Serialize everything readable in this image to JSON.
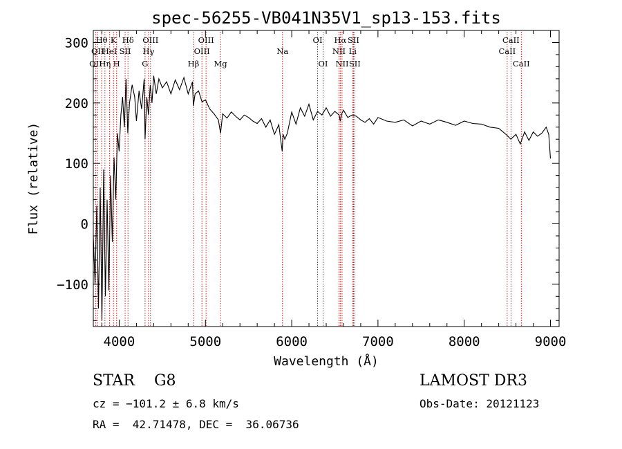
{
  "chart_data": {
    "type": "line",
    "title": "spec-56255-VB041N35V1_sp13-153.fits",
    "xlabel": "Wavelength (Å)",
    "ylabel": "Flux (relative)",
    "xlim": [
      3700,
      9100
    ],
    "ylim": [
      -170,
      320
    ],
    "x_ticks": [
      4000,
      5000,
      6000,
      7000,
      8000,
      9000
    ],
    "y_ticks": [
      -100,
      0,
      100,
      200,
      300
    ],
    "series": [
      {
        "x": [
          3700,
          3720,
          3740,
          3760,
          3780,
          3800,
          3820,
          3840,
          3860,
          3880,
          3900,
          3920,
          3940,
          3960,
          3980,
          4000,
          4020,
          4040,
          4060,
          4080,
          4100,
          4120,
          4150,
          4180,
          4200,
          4230,
          4260,
          4290,
          4300,
          4320,
          4340,
          4360,
          4380,
          4400,
          4430,
          4460,
          4500,
          4550,
          4600,
          4650,
          4700,
          4750,
          4800,
          4850,
          4860,
          4880,
          4920,
          4960,
          5000,
          5050,
          5100,
          5150,
          5175,
          5200,
          5250,
          5300,
          5350,
          5400,
          5450,
          5500,
          5550,
          5600,
          5650,
          5700,
          5750,
          5800,
          5850,
          5890,
          5900,
          5920,
          5950,
          6000,
          6050,
          6100,
          6150,
          6200,
          6250,
          6300,
          6350,
          6400,
          6450,
          6500,
          6550,
          6563,
          6580,
          6600,
          6650,
          6700,
          6750,
          6800,
          6850,
          6900,
          6950,
          7000,
          7100,
          7200,
          7300,
          7400,
          7500,
          7600,
          7700,
          7800,
          7900,
          8000,
          8100,
          8200,
          8300,
          8400,
          8450,
          8500,
          8540,
          8600,
          8650,
          8700,
          8750,
          8800,
          8850,
          8900,
          8950,
          8980,
          9000
        ],
        "y": [
          -20,
          -100,
          30,
          -140,
          60,
          -160,
          90,
          -120,
          40,
          -110,
          80,
          -30,
          110,
          40,
          150,
          120,
          180,
          210,
          160,
          240,
          150,
          200,
          230,
          210,
          170,
          220,
          190,
          240,
          140,
          210,
          180,
          230,
          200,
          245,
          215,
          240,
          225,
          235,
          215,
          238,
          222,
          242,
          215,
          235,
          195,
          215,
          220,
          202,
          205,
          190,
          182,
          172,
          150,
          182,
          175,
          185,
          178,
          172,
          180,
          176,
          170,
          166,
          174,
          160,
          172,
          148,
          164,
          120,
          148,
          140,
          150,
          185,
          165,
          192,
          178,
          198,
          172,
          186,
          180,
          192,
          178,
          186,
          180,
          170,
          182,
          188,
          176,
          180,
          178,
          172,
          168,
          174,
          165,
          176,
          170,
          168,
          172,
          162,
          170,
          165,
          172,
          168,
          163,
          170,
          166,
          165,
          160,
          158,
          152,
          146,
          140,
          148,
          132,
          152,
          138,
          152,
          145,
          150,
          160,
          148,
          108
        ]
      }
    ],
    "line_markers": [
      {
        "wavelength": 3727,
        "labels": [
          "OII"
        ],
        "row": 3
      },
      {
        "wavelength": 3750,
        "labels": [
          "OII"
        ],
        "row": 2
      },
      {
        "wavelength": 3797,
        "labels": [
          "Hθ"
        ],
        "row": 1
      },
      {
        "wavelength": 3835,
        "labels": [
          "Hη"
        ],
        "row": 3
      },
      {
        "wavelength": 3889,
        "labels": [
          "HeI"
        ],
        "row": 2
      },
      {
        "wavelength": 3934,
        "labels": [
          "K"
        ],
        "row": 1
      },
      {
        "wavelength": 3970,
        "labels": [
          "H"
        ],
        "row": 3
      },
      {
        "wavelength": 4069,
        "labels": [
          "SII"
        ],
        "row": 2
      },
      {
        "wavelength": 4102,
        "labels": [
          "Hδ"
        ],
        "row": 1
      },
      {
        "wavelength": 4300,
        "labels": [
          "G"
        ],
        "row": 3
      },
      {
        "wavelength": 4340,
        "labels": [
          "Hγ"
        ],
        "row": 2
      },
      {
        "wavelength": 4363,
        "labels": [
          "OIII"
        ],
        "row": 1
      },
      {
        "wavelength": 4861,
        "labels": [
          "Hβ"
        ],
        "row": 3
      },
      {
        "wavelength": 4959,
        "labels": [
          "OIII"
        ],
        "row": 2
      },
      {
        "wavelength": 5007,
        "labels": [
          "OIII"
        ],
        "row": 1
      },
      {
        "wavelength": 5175,
        "labels": [
          "Mg"
        ],
        "row": 3
      },
      {
        "wavelength": 5893,
        "labels": [
          "Na"
        ],
        "row": 2
      },
      {
        "wavelength": 6300,
        "labels": [
          "OI"
        ],
        "row": 1
      },
      {
        "wavelength": 6364,
        "labels": [
          "OI"
        ],
        "row": 3
      },
      {
        "wavelength": 6548,
        "labels": [
          "NII"
        ],
        "row": 2
      },
      {
        "wavelength": 6563,
        "labels": [
          "Hα"
        ],
        "row": 1
      },
      {
        "wavelength": 6584,
        "labels": [
          "NII"
        ],
        "row": 3
      },
      {
        "wavelength": 6707,
        "labels": [
          "Li"
        ],
        "row": 2
      },
      {
        "wavelength": 6716,
        "labels": [
          "SII"
        ],
        "row": 1
      },
      {
        "wavelength": 6731,
        "labels": [
          "SII"
        ],
        "row": 3
      },
      {
        "wavelength": 8498,
        "labels": [
          "CaII"
        ],
        "row": 2
      },
      {
        "wavelength": 8542,
        "labels": [
          "CaII"
        ],
        "row": 1
      },
      {
        "wavelength": 8662,
        "labels": [
          "CaII"
        ],
        "row": 3
      }
    ],
    "grid": false,
    "marker_color": "#cc0000",
    "line_color": "#000000"
  },
  "info": {
    "class": "STAR",
    "subclass": "G8",
    "survey": "LAMOST DR3",
    "cz": "cz = −101.2 ± 6.8 km/s",
    "obsdate": "Obs-Date: 20121123",
    "radec": "RA =  42.71478, DEC =  36.06736"
  }
}
